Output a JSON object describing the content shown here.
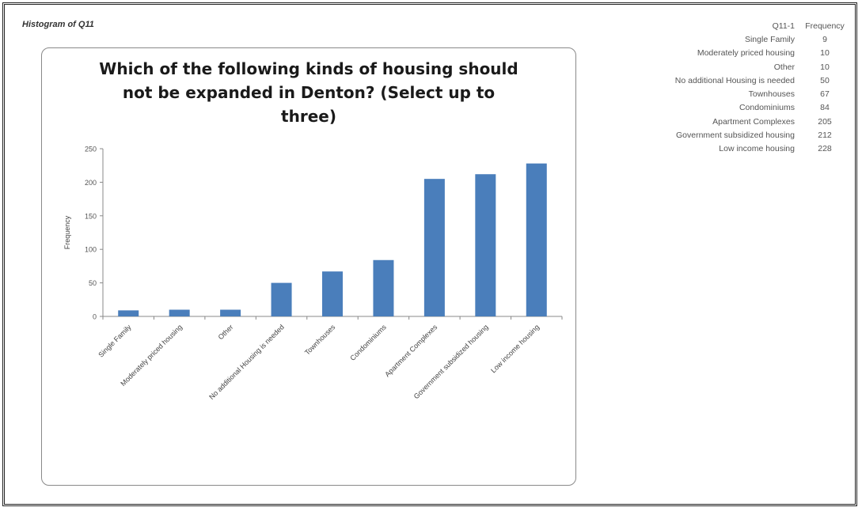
{
  "page": {
    "heading": "Histogram of Q11"
  },
  "table": {
    "headers": [
      "Q11-1",
      "Frequency"
    ],
    "rows": [
      [
        "Single Family",
        "9"
      ],
      [
        "Moderately priced housing",
        "10"
      ],
      [
        "Other",
        "10"
      ],
      [
        "No additional Housing is needed",
        "50"
      ],
      [
        "Townhouses",
        "67"
      ],
      [
        "Condominiums",
        "84"
      ],
      [
        "Apartment Complexes",
        "205"
      ],
      [
        "Government subsidized housing",
        "212"
      ],
      [
        "Low income housing",
        "228"
      ]
    ]
  },
  "chart_data": {
    "type": "bar",
    "title": "Which of the following kinds of housing should not be expanded in Denton? (Select up to three)",
    "title_lines": [
      "Which of the following kinds of housing should",
      "not be expanded in Denton? (Select up to",
      "three)"
    ],
    "xlabel": "",
    "ylabel": "Frequency",
    "categories": [
      "Single Family",
      "Moderately priced housing",
      "Other",
      "No additional Housing is needed",
      "Townhouses",
      "Condominiums",
      "Apartment Complexes",
      "Government subsidized housing",
      "Low income housing"
    ],
    "values": [
      9,
      10,
      10,
      50,
      67,
      84,
      205,
      212,
      228
    ],
    "ylim": [
      0,
      250
    ],
    "yticks": [
      "0",
      "50",
      "100",
      "150",
      "200",
      "250"
    ],
    "bar_color": "#4a7ebb",
    "grid": false,
    "legend": "none"
  }
}
